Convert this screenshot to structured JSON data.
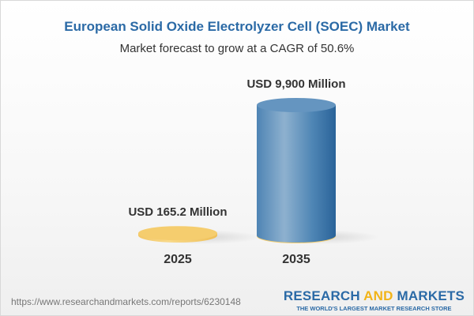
{
  "header": {
    "title": "European Solid Oxide Electrolyzer Cell (SOEC) Market",
    "subtitle": "Market forecast to grow at a CAGR of 50.6%"
  },
  "chart_data": {
    "type": "bar",
    "style": "3d-cylinder",
    "categories": [
      "2025",
      "2035"
    ],
    "values": [
      165.2,
      9900
    ],
    "data_labels": [
      "USD 165.2 Million",
      "USD 9,900 Million"
    ],
    "unit": "USD Million",
    "colors": [
      "#f5cd6e",
      "#4f86b5"
    ],
    "grid": false
  },
  "footer": {
    "url": "https://www.researchandmarkets.com/reports/6230148",
    "logo_part1": "RESEARCH ",
    "logo_part2": "AND",
    "logo_part3": " MARKETS",
    "tagline": "THE WORLD'S LARGEST MARKET RESEARCH STORE"
  }
}
